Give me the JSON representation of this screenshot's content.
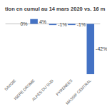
{
  "chart_data": {
    "type": "bar",
    "title": "tion en cumul au 14 mars 2020 vs. 16 m",
    "categories": [
      "SAVOIE",
      "ISERE DROME",
      "ALPES DU SUD",
      "PYRENEES",
      "MASSIF CENTRAL"
    ],
    "values": [
      0,
      4,
      -1,
      -1,
      -42
    ],
    "value_labels": [
      "0%",
      "4%",
      "-1%",
      "-1%",
      "-42%"
    ],
    "color": "#4472c4",
    "ylim": [
      -45,
      8
    ],
    "grid": false,
    "data_labels": true,
    "tick_labels": "x"
  }
}
